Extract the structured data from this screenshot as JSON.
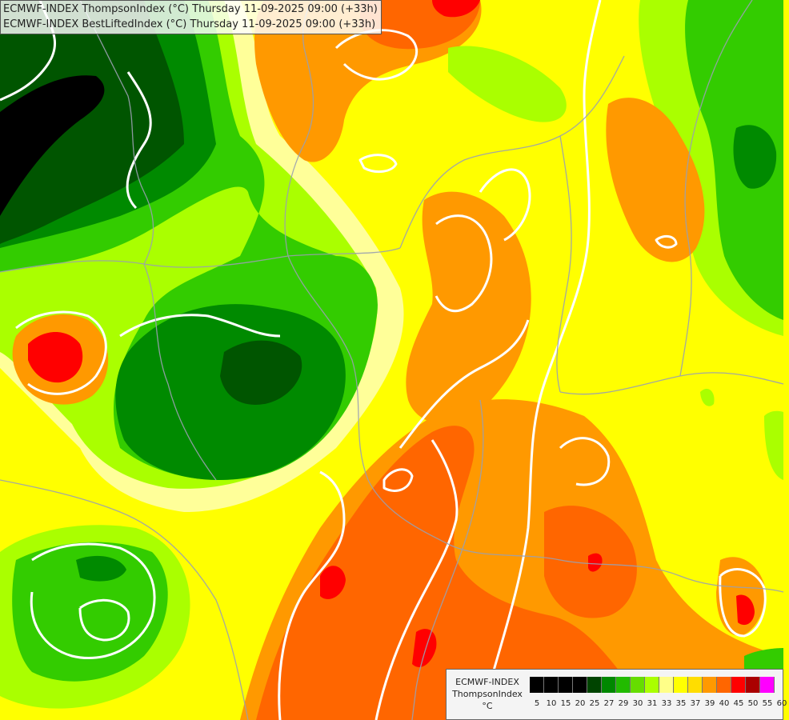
{
  "header": {
    "line1": "ECMWF-INDEX ThompsonIndex (°C) Thursday 11-09-2025 09:00 (+33h)",
    "line2": "ECMWF-INDEX BestLiftedIndex (°C) Thursday 11-09-2025 09:00 (+33h)"
  },
  "legend": {
    "model": "ECMWF-INDEX",
    "parameter": "ThompsonIndex",
    "unit": "°C",
    "colors": [
      "#000000",
      "#000000",
      "#000000",
      "#000000",
      "#004400",
      "#008800",
      "#22bb00",
      "#66dd00",
      "#aaff00",
      "#ffff88",
      "#ffff00",
      "#ffdd00",
      "#ff9900",
      "#ff6600",
      "#ff0000",
      "#aa0000",
      "#ff00ff",
      "#aa00ff",
      "#6600ff",
      "#2222ff",
      "#0000ff"
    ],
    "ticks": [
      "5",
      "10",
      "15",
      "20",
      "25",
      "27",
      "29",
      "30",
      "31",
      "33",
      "35",
      "37",
      "39",
      "40",
      "45",
      "50",
      "55",
      "60"
    ]
  },
  "map_colors": {
    "dark_green": "#005500",
    "green": "#008a00",
    "bright_green": "#33cc00",
    "lime": "#99ff00",
    "pale_yellow": "#ffff99",
    "yellow": "#ffff00",
    "orange": "#ff9900",
    "dark_orange": "#ff6600",
    "red": "#ff0000"
  }
}
